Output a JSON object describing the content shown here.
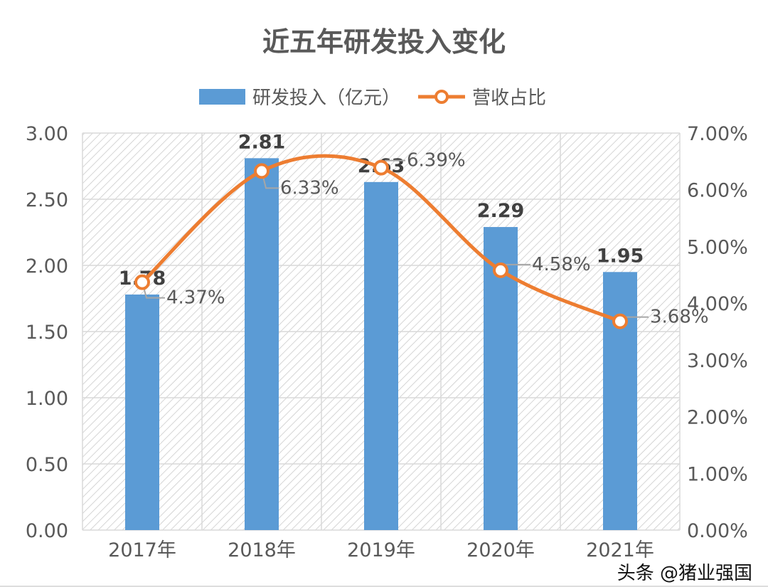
{
  "chart_data": {
    "type": "bar+line",
    "title": "近五年研发投入变化",
    "categories": [
      "2017年",
      "2018年",
      "2019年",
      "2020年",
      "2021年"
    ],
    "series": [
      {
        "name": "研发投入（亿元）",
        "type": "bar",
        "axis": "left",
        "values": [
          1.78,
          2.81,
          2.63,
          2.29,
          1.95
        ],
        "labels": [
          "1.78",
          "2.81",
          "2.63",
          "2.29",
          "1.95"
        ],
        "color": "#5b9bd5"
      },
      {
        "name": "营收占比",
        "type": "line",
        "smooth": true,
        "axis": "right",
        "values": [
          4.37,
          6.33,
          6.39,
          4.58,
          3.68
        ],
        "labels": [
          "4.37%",
          "6.33%",
          "6.39%",
          "4.58%",
          "3.68%"
        ],
        "color": "#ed7d31"
      }
    ],
    "left_axis": {
      "ylim": [
        0,
        3
      ],
      "ticks": [
        "0.00",
        "0.50",
        "1.00",
        "1.50",
        "2.00",
        "2.50",
        "3.00"
      ]
    },
    "right_axis": {
      "ylim": [
        0,
        7
      ],
      "ticks": [
        "0.00%",
        "1.00%",
        "2.00%",
        "3.00%",
        "4.00%",
        "5.00%",
        "6.00%",
        "7.00%"
      ]
    },
    "grid": true,
    "legend": "top"
  },
  "watermark": "头条 @猪业强国"
}
